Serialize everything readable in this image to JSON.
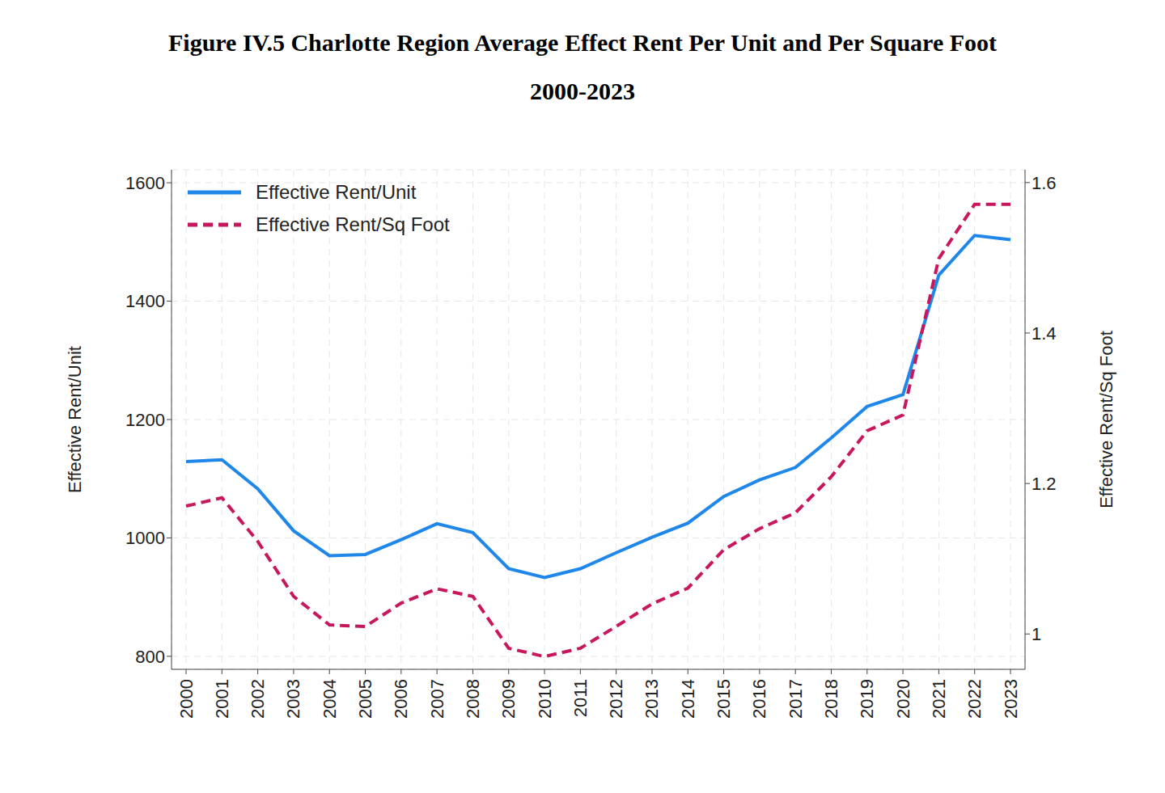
{
  "chart_data": {
    "type": "line",
    "title": "Figure IV.5 Charlotte Region Average Effect Rent Per Unit and Per Square Foot",
    "subtitle": "2000-2023",
    "categories": [
      "2000",
      "2001",
      "2002",
      "2003",
      "2004",
      "2005",
      "2006",
      "2007",
      "2008",
      "2009",
      "2010",
      "2011",
      "2012",
      "2013",
      "2014",
      "2015",
      "2016",
      "2017",
      "2018",
      "2019",
      "2020",
      "2021",
      "2022",
      "2023"
    ],
    "series": [
      {
        "name": "Effective Rent/Unit",
        "color": "#1f87ea",
        "line_style": "solid",
        "axis": "y",
        "values": [
          1129,
          1132,
          1083,
          1012,
          970,
          972,
          997,
          1024,
          1009,
          948,
          933,
          948,
          975,
          1001,
          1025,
          1070,
          1098,
          1119,
          1169,
          1222,
          1242,
          1444,
          1511,
          1504
        ]
      },
      {
        "name": "Effective Rent/Sq Foot",
        "color": "#c8175d",
        "line_style": "dashed",
        "axis": "y2",
        "values": [
          1.17,
          1.181,
          1.123,
          1.05,
          1.012,
          1.01,
          1.041,
          1.06,
          1.05,
          0.981,
          0.97,
          0.981,
          1.01,
          1.04,
          1.061,
          1.112,
          1.14,
          1.161,
          1.209,
          1.27,
          1.291,
          1.499,
          1.571,
          1.571
        ]
      }
    ],
    "y_label": "Effective Rent/Unit",
    "y2_label": "Effective Rent/Sq Foot",
    "ylim": [
      778,
      1622
    ],
    "yticks": [
      800,
      1000,
      1200,
      1400,
      1600
    ],
    "y2lim": [
      0.953,
      1.617
    ],
    "y2ticks": [
      1,
      1.2,
      1.4,
      1.6
    ],
    "grid": true,
    "legend": "upper left"
  }
}
